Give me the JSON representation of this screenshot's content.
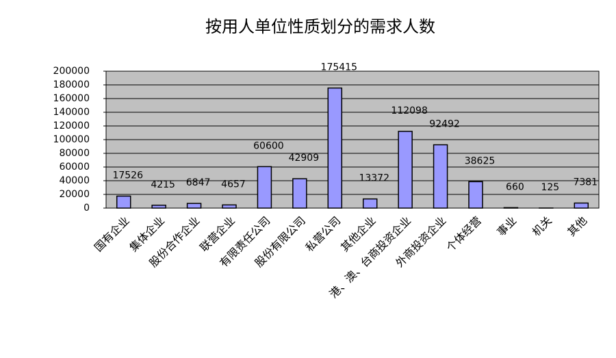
{
  "chart_data": {
    "type": "bar",
    "title": "按用人单位性质划分的需求人数",
    "categories": [
      "国有企业",
      "集体企业",
      "股份合作企业",
      "联营企业",
      "有限责任公司",
      "股份有限公司",
      "私营公司",
      "其他企业",
      "港、澳、台商投资企业",
      "外商投资企业",
      "个体经营",
      "事业",
      "机关",
      "其他"
    ],
    "values": [
      17526,
      4215,
      6847,
      4657,
      60600,
      42909,
      175415,
      13372,
      112098,
      92492,
      38625,
      660,
      125,
      7381
    ],
    "color": "#9999ff",
    "plot_background": "#c0c0c0",
    "ylim": [
      0,
      200000
    ],
    "yticks": [
      0,
      20000,
      40000,
      60000,
      80000,
      100000,
      120000,
      140000,
      160000,
      180000,
      200000
    ],
    "grid": true
  }
}
